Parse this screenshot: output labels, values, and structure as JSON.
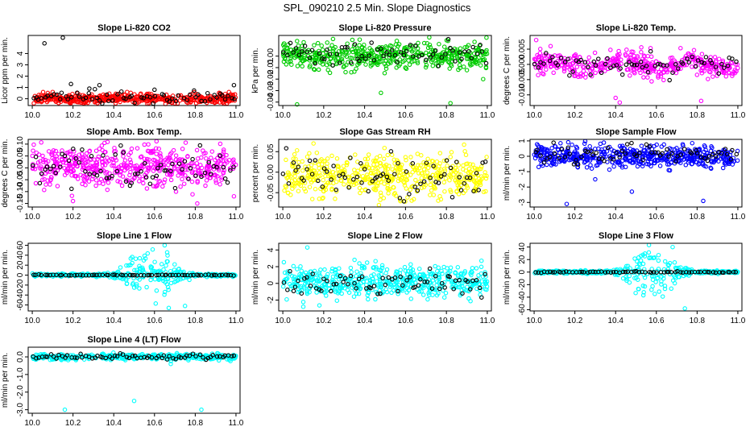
{
  "page": {
    "title": "SPL_090210  2.5 Min. Slope Diagnostics"
  },
  "colors": {
    "reference": "#000000",
    "red": "#ff0000",
    "green": "#00cc00",
    "magenta": "#ff00ff",
    "yellow": "#ffff00",
    "blue": "#0000ff",
    "cyan": "#00ffff"
  },
  "chart_data": [
    {
      "id": "co2",
      "type": "scatter",
      "title": "Slope Li-820 CO2",
      "ylabel": "Licor ppm per min.",
      "xlim": [
        9.98,
        11.02
      ],
      "ylim": [
        -0.6,
        5.6
      ],
      "xticks": [
        10.0,
        10.2,
        10.4,
        10.6,
        10.8,
        11.0
      ],
      "xtick_labels": [
        "10.0",
        "10.2",
        "10.4",
        "10.6",
        "10.8",
        "11.0"
      ],
      "yticks": [
        0,
        1,
        2,
        3,
        4
      ],
      "ytick_labels": [
        "0",
        "1",
        "2",
        "3",
        "4"
      ],
      "main_color": "red",
      "ref_color": "reference",
      "sim": {
        "center": 0.0,
        "spread": 0.22,
        "n_main": 480,
        "ref_center": 0.08,
        "ref_spread": 0.3,
        "n_ref": 70,
        "pattern": "flat",
        "pattern_amp": 0,
        "pattern_center": 0.5
      },
      "outliers": [
        {
          "x": 10.06,
          "y": 4.9,
          "set": "ref"
        },
        {
          "x": 10.15,
          "y": 5.4,
          "set": "ref"
        },
        {
          "x": 10.19,
          "y": 1.3,
          "set": "ref"
        },
        {
          "x": 10.28,
          "y": 0.9,
          "set": "ref"
        },
        {
          "x": 10.33,
          "y": 1.2,
          "set": "ref"
        },
        {
          "x": 10.6,
          "y": 0.8,
          "set": "ref"
        },
        {
          "x": 10.99,
          "y": 1.2,
          "set": "ref"
        }
      ]
    },
    {
      "id": "pressure",
      "type": "scatter",
      "title": "Slope Li-820 Pressure",
      "ylabel": "kPa per min.",
      "xlim": [
        9.98,
        11.02
      ],
      "ylim": [
        -0.043,
        0.018
      ],
      "xticks": [
        10.0,
        10.2,
        10.4,
        10.6,
        10.8,
        11.0
      ],
      "xtick_labels": [
        "10.0",
        "10.2",
        "10.4",
        "10.6",
        "10.8",
        "11.0"
      ],
      "yticks": [
        -0.04,
        -0.03,
        -0.02,
        -0.01,
        0.0
      ],
      "ytick_labels": [
        "-0.04",
        "-0.03",
        "-0.02",
        "-0.01",
        "0.00"
      ],
      "main_color": "green",
      "ref_color": "reference",
      "sim": {
        "center": 0.0,
        "spread": 0.0055,
        "n_main": 480,
        "ref_center": 0.002,
        "ref_spread": 0.006,
        "n_ref": 70,
        "pattern": "flat",
        "pattern_amp": 0,
        "pattern_center": 0.5
      },
      "outliers": [
        {
          "x": 10.07,
          "y": -0.042,
          "set": "main"
        },
        {
          "x": 10.48,
          "y": -0.032,
          "set": "main"
        },
        {
          "x": 10.82,
          "y": -0.041,
          "set": "main"
        },
        {
          "x": 10.98,
          "y": -0.02,
          "set": "main"
        }
      ]
    },
    {
      "id": "temp",
      "type": "scatter",
      "title": "Slope Li-820 Temp.",
      "ylabel": "degrees C per min.",
      "xlim": [
        9.98,
        11.02
      ],
      "ylim": [
        -0.0135,
        0.0095
      ],
      "xticks": [
        10.0,
        10.2,
        10.4,
        10.6,
        10.8,
        11.0
      ],
      "xtick_labels": [
        "10.0",
        "10.2",
        "10.4",
        "10.6",
        "10.8",
        "11.0"
      ],
      "yticks": [
        -0.01,
        -0.005,
        0.0,
        0.005
      ],
      "ytick_labels": [
        "-0.010",
        "-0.005",
        "0.000",
        "0.005"
      ],
      "main_color": "magenta",
      "ref_color": "reference",
      "sim": {
        "center": 0.0,
        "spread": 0.0018,
        "n_main": 420,
        "ref_center": 0.0,
        "ref_spread": 0.0018,
        "n_ref": 70,
        "pattern": "wavy",
        "pattern_amp": 0.002,
        "pattern_center": 0.42
      },
      "outliers": [
        {
          "x": 10.01,
          "y": 0.008,
          "set": "main"
        },
        {
          "x": 10.4,
          "y": -0.011,
          "set": "main"
        },
        {
          "x": 10.42,
          "y": -0.0125,
          "set": "main"
        },
        {
          "x": 10.82,
          "y": -0.012,
          "set": "main"
        }
      ]
    },
    {
      "id": "ambbox",
      "type": "scatter",
      "title": "Slope Amb. Box Temp.",
      "ylabel": "degrees C per min.",
      "xlim": [
        9.98,
        11.02
      ],
      "ylim": [
        -0.165,
        0.12
      ],
      "xticks": [
        10.0,
        10.2,
        10.4,
        10.6,
        10.8,
        11.0
      ],
      "xtick_labels": [
        "10.0",
        "10.2",
        "10.4",
        "10.6",
        "10.8",
        "11.0"
      ],
      "yticks": [
        -0.15,
        -0.1,
        -0.05,
        0.0,
        0.05,
        0.1
      ],
      "ytick_labels": [
        "-0.15",
        "-0.10",
        "-0.05",
        "0.00",
        "0.05",
        "0.10"
      ],
      "main_color": "magenta",
      "ref_color": "reference",
      "sim": {
        "center": 0.005,
        "spread": 0.045,
        "n_main": 520,
        "ref_center": 0.0,
        "ref_spread": 0.04,
        "n_ref": 70,
        "pattern": "flat",
        "pattern_amp": 0,
        "pattern_center": 0.5
      },
      "outliers": [
        {
          "x": 10.2,
          "y": -0.14,
          "set": "main"
        },
        {
          "x": 10.81,
          "y": -0.15,
          "set": "main"
        },
        {
          "x": 10.99,
          "y": -0.12,
          "set": "main"
        }
      ]
    },
    {
      "id": "rh",
      "type": "scatter",
      "title": "Slope Gas Stream RH",
      "ylabel": "percent per min.",
      "xlim": [
        9.98,
        11.02
      ],
      "ylim": [
        -0.085,
        0.08
      ],
      "xticks": [
        10.0,
        10.2,
        10.4,
        10.6,
        10.8,
        11.0
      ],
      "xtick_labels": [
        "10.0",
        "10.2",
        "10.4",
        "10.6",
        "10.8",
        "11.0"
      ],
      "yticks": [
        -0.05,
        0.0,
        0.05
      ],
      "ytick_labels": [
        "-0.05",
        "0.00",
        "0.05"
      ],
      "main_color": "yellow",
      "ref_color": "reference",
      "sim": {
        "center": -0.01,
        "spread": 0.025,
        "n_main": 520,
        "ref_center": -0.01,
        "ref_spread": 0.025,
        "n_ref": 70,
        "pattern": "flat",
        "pattern_amp": 0,
        "pattern_center": 0.5
      },
      "outliers": [
        {
          "x": 10.47,
          "y": -0.08,
          "set": "main"
        },
        {
          "x": 10.15,
          "y": 0.07,
          "set": "main"
        }
      ]
    },
    {
      "id": "sample",
      "type": "scatter",
      "title": "Slope Sample Flow",
      "ylabel": "ml/min per min.",
      "xlim": [
        9.98,
        11.02
      ],
      "ylim": [
        -3.3,
        1.1
      ],
      "xticks": [
        10.0,
        10.2,
        10.4,
        10.6,
        10.8,
        11.0
      ],
      "xtick_labels": [
        "10.0",
        "10.2",
        "10.4",
        "10.6",
        "10.8",
        "11.0"
      ],
      "yticks": [
        -3,
        -2,
        -1,
        0,
        1
      ],
      "ytick_labels": [
        "-3",
        "-2",
        "-1",
        "0",
        "1"
      ],
      "main_color": "blue",
      "ref_color": "reference",
      "sim": {
        "center": 0.0,
        "spread": 0.35,
        "n_main": 520,
        "ref_center": 0.2,
        "ref_spread": 0.35,
        "n_ref": 70,
        "pattern": "flat",
        "pattern_amp": 0,
        "pattern_center": 0.5
      },
      "outliers": [
        {
          "x": 10.16,
          "y": -3.1,
          "set": "main"
        },
        {
          "x": 10.48,
          "y": -2.3,
          "set": "main"
        },
        {
          "x": 10.83,
          "y": -2.9,
          "set": "main"
        },
        {
          "x": 10.3,
          "y": -1.5,
          "set": "main"
        }
      ]
    },
    {
      "id": "line1",
      "type": "scatter",
      "title": "Slope Line 1 Flow",
      "ylabel": "ml/min per min.",
      "xlim": [
        9.98,
        11.02
      ],
      "ylim": [
        -72,
        64
      ],
      "xticks": [
        10.0,
        10.2,
        10.4,
        10.6,
        10.8,
        11.0
      ],
      "xtick_labels": [
        "10.0",
        "10.2",
        "10.4",
        "10.6",
        "10.8",
        "11.0"
      ],
      "yticks": [
        -60,
        -40,
        -20,
        0,
        20,
        40,
        60
      ],
      "ytick_labels": [
        "-60",
        "-40",
        "-20",
        "0",
        "20",
        "40",
        "60"
      ],
      "main_color": "cyan",
      "ref_color": "reference",
      "sim": {
        "center": 0.0,
        "spread": 1.5,
        "n_main": 420,
        "ref_center": 0.0,
        "ref_spread": 0.5,
        "n_ref": 70,
        "pattern": "burst",
        "pattern_amp": 28,
        "pattern_center": 0.58
      },
      "outliers": [
        {
          "x": 10.65,
          "y": 60,
          "set": "main"
        },
        {
          "x": 10.67,
          "y": -66,
          "set": "main"
        },
        {
          "x": 10.75,
          "y": -62,
          "set": "main"
        }
      ]
    },
    {
      "id": "line2",
      "type": "scatter",
      "title": "Slope Line 2 Flow",
      "ylabel": "ml/min per min.",
      "xlim": [
        9.98,
        11.02
      ],
      "ylim": [
        -3.3,
        4.8
      ],
      "xticks": [
        10.0,
        10.2,
        10.4,
        10.6,
        10.8,
        11.0
      ],
      "xtick_labels": [
        "10.0",
        "10.2",
        "10.4",
        "10.6",
        "10.8",
        "11.0"
      ],
      "yticks": [
        -2,
        0,
        2,
        4
      ],
      "ytick_labels": [
        "-2",
        "0",
        "2",
        "4"
      ],
      "main_color": "cyan",
      "ref_color": "reference",
      "sim": {
        "center": 0.2,
        "spread": 0.9,
        "n_main": 520,
        "ref_center": 0.0,
        "ref_spread": 0.7,
        "n_ref": 70,
        "pattern": "flat",
        "pattern_amp": 0,
        "pattern_center": 0.5
      },
      "outliers": [
        {
          "x": 10.12,
          "y": 4.3,
          "set": "main"
        },
        {
          "x": 10.1,
          "y": -2.8,
          "set": "main"
        }
      ]
    },
    {
      "id": "line3",
      "type": "scatter",
      "title": "Slope Line 3 Flow",
      "ylabel": "ml/min per min.",
      "xlim": [
        9.98,
        11.02
      ],
      "ylim": [
        -62,
        46
      ],
      "xticks": [
        10.0,
        10.2,
        10.4,
        10.6,
        10.8,
        11.0
      ],
      "xtick_labels": [
        "10.0",
        "10.2",
        "10.4",
        "10.6",
        "10.8",
        "11.0"
      ],
      "yticks": [
        -60,
        -40,
        -20,
        0,
        20,
        40
      ],
      "ytick_labels": [
        "-60",
        "-40",
        "-20",
        "0",
        "20",
        "40"
      ],
      "main_color": "cyan",
      "ref_color": "reference",
      "sim": {
        "center": 0.0,
        "spread": 1.2,
        "n_main": 420,
        "ref_center": 0.0,
        "ref_spread": 0.5,
        "n_ref": 70,
        "pattern": "burst",
        "pattern_amp": 22,
        "pattern_center": 0.58
      },
      "outliers": [
        {
          "x": 10.68,
          "y": 40,
          "set": "main"
        },
        {
          "x": 10.74,
          "y": -58,
          "set": "main"
        }
      ]
    },
    {
      "id": "line4",
      "type": "scatter",
      "title": "Slope Line 4 (LT) Flow",
      "ylabel": "ml/min per min.",
      "xlim": [
        9.98,
        11.02
      ],
      "ylim": [
        -3.2,
        0.55
      ],
      "xticks": [
        10.0,
        10.2,
        10.4,
        10.6,
        10.8,
        11.0
      ],
      "xtick_labels": [
        "10.0",
        "10.2",
        "10.4",
        "10.6",
        "10.8",
        "11.0"
      ],
      "yticks": [
        -3.0,
        -2.0,
        -1.0,
        0.0
      ],
      "ytick_labels": [
        "-3.0",
        "-2.0",
        "-1.0",
        "0.0"
      ],
      "main_color": "cyan",
      "ref_color": "reference",
      "sim": {
        "center": 0.0,
        "spread": 0.08,
        "n_main": 420,
        "ref_center": 0.0,
        "ref_spread": 0.08,
        "n_ref": 70,
        "pattern": "flat",
        "pattern_amp": 0,
        "pattern_center": 0.5
      },
      "outliers": [
        {
          "x": 10.16,
          "y": -3.0,
          "set": "main"
        },
        {
          "x": 10.5,
          "y": -2.5,
          "set": "main"
        },
        {
          "x": 10.83,
          "y": -3.0,
          "set": "main"
        },
        {
          "x": 10.68,
          "y": -0.4,
          "set": "main"
        }
      ]
    }
  ]
}
